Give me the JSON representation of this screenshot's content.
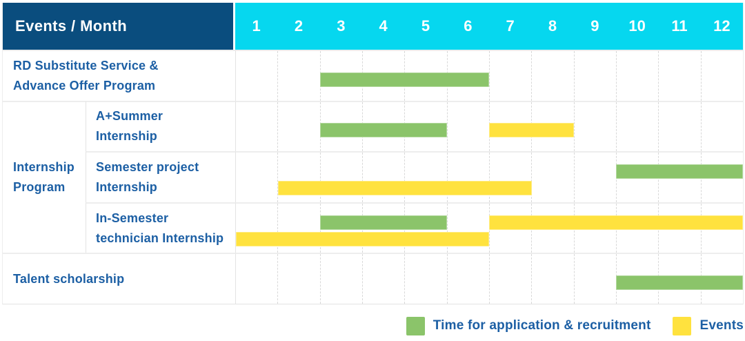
{
  "header": {
    "events_month_label": "Events / Month"
  },
  "colors": {
    "header_bg": "#0a4d7e",
    "month_header_bg": "#06d7ef",
    "green": "#8bc46a",
    "yellow": "#ffe23e",
    "label_text": "#1c5fa4"
  },
  "chart_data": {
    "type": "gantt",
    "x_unit": "month",
    "x_range": [
      1,
      12
    ],
    "months": [
      "1",
      "2",
      "3",
      "4",
      "5",
      "6",
      "7",
      "8",
      "9",
      "10",
      "11",
      "12"
    ],
    "grid": "dashed-vertical-month-lines",
    "legend_position": "bottom-right",
    "legend": [
      {
        "color": "green",
        "label": "Time for application & recruitment"
      },
      {
        "color": "yellow",
        "label": "Events"
      }
    ],
    "group": {
      "label": "Internship Program",
      "lines": [
        "Internship",
        "Program"
      ]
    },
    "rows": [
      {
        "label": "RD Substitute Service & Advance Offer Program",
        "lines": [
          "RD Substitute Service &",
          "Advance Offer Program"
        ],
        "group": "",
        "bars": [
          {
            "kind": "application",
            "color": "green",
            "start_month": 3,
            "end_month": 6,
            "lane": "middle"
          }
        ]
      },
      {
        "label": "A+Summer Internship",
        "lines": [
          "A+Summer",
          "Internship"
        ],
        "group": "Internship Program",
        "bars": [
          {
            "kind": "application",
            "color": "green",
            "start_month": 3,
            "end_month": 5,
            "lane": "middle"
          },
          {
            "kind": "event",
            "color": "yellow",
            "start_month": 7,
            "end_month": 8,
            "lane": "middle"
          }
        ]
      },
      {
        "label": "Semester project Internship",
        "lines": [
          "Semester project",
          "Internship"
        ],
        "group": "Internship Program",
        "bars": [
          {
            "kind": "application",
            "color": "green",
            "start_month": 10,
            "end_month": 12,
            "lane": "top"
          },
          {
            "kind": "event",
            "color": "yellow",
            "start_month": 2,
            "end_month": 7,
            "lane": "bottom"
          }
        ]
      },
      {
        "label": "In-Semester technician Internship",
        "lines": [
          "In-Semester",
          "technician Internship"
        ],
        "group": "Internship Program",
        "bars": [
          {
            "kind": "application",
            "color": "green",
            "start_month": 3,
            "end_month": 5,
            "lane": "top"
          },
          {
            "kind": "event",
            "color": "yellow",
            "start_month": 7,
            "end_month": 12,
            "lane": "top"
          },
          {
            "kind": "event",
            "color": "yellow",
            "start_month": 1,
            "end_month": 6,
            "lane": "bottom"
          }
        ]
      },
      {
        "label": "Talent scholarship",
        "lines": [
          "Talent scholarship"
        ],
        "group": "",
        "bars": [
          {
            "kind": "application",
            "color": "green",
            "start_month": 10,
            "end_month": 12,
            "lane": "middle"
          }
        ]
      }
    ]
  }
}
